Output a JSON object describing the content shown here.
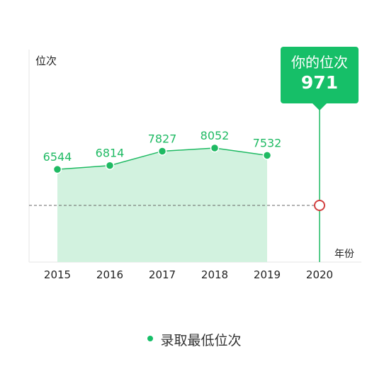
{
  "chart_data": {
    "type": "area",
    "ylabel": "位次",
    "xlabel": "年份",
    "categories": [
      "2015",
      "2016",
      "2017",
      "2018",
      "2019",
      "2020"
    ],
    "series": [
      {
        "name": "录取最低位次",
        "values": [
          6544,
          6814,
          7827,
          8052,
          7532,
          null
        ]
      }
    ],
    "data_labels": [
      "6544",
      "6814",
      "7827",
      "8052",
      "7532"
    ],
    "reference": {
      "label": "你的位次",
      "value": 971,
      "value_text": "971",
      "x": "2020"
    },
    "ylim": [
      0,
      15000
    ],
    "grid": false,
    "legend": "bottom",
    "colors": {
      "line": "#1fba63",
      "fill": "#d2f2df",
      "callout": "#16bf68",
      "marker": "#d23f3f"
    }
  }
}
